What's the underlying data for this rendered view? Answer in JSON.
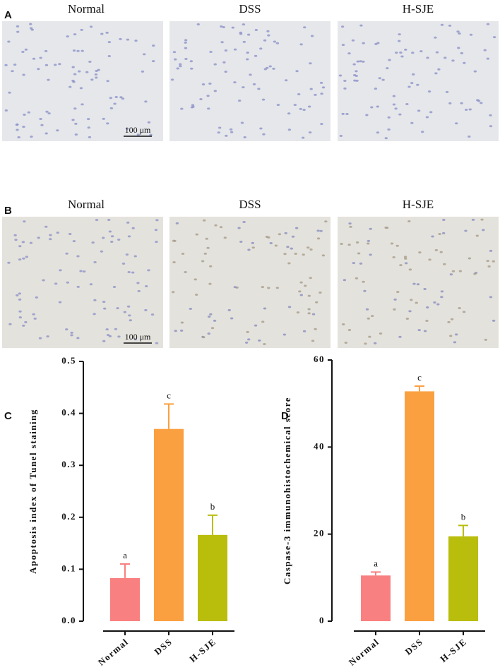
{
  "panels": [
    {
      "label": "A",
      "images": [
        "Normal",
        "DSS",
        "H-SJE"
      ],
      "scale_bar": "100 μm"
    },
    {
      "label": "B",
      "images": [
        "Normal",
        "DSS",
        "H-SJE"
      ],
      "scale_bar": "100 μm"
    }
  ],
  "chart_data": [
    {
      "type": "bar",
      "label": "C",
      "ylabel": "Apoptosis index of Tunel staining",
      "categories": [
        "Normal",
        "DSS",
        "H-SJE"
      ],
      "values": [
        0.083,
        0.37,
        0.166
      ],
      "errors": [
        0.027,
        0.048,
        0.038
      ],
      "annotations": [
        "a",
        "c",
        "b"
      ],
      "colors": [
        "#f98080",
        "#fba040",
        "#b9bd0c"
      ],
      "ylim": [
        0,
        0.5
      ],
      "yticks": [
        {
          "value": 0,
          "label": "0.0"
        },
        0.1,
        0.2,
        0.3,
        0.4,
        0.5
      ]
    },
    {
      "type": "bar",
      "label": "D",
      "ylabel": "Caspase-3 immunohistochemical score",
      "categories": [
        "Normal",
        "DSS",
        "H-SJE"
      ],
      "values": [
        10.5,
        52.8,
        19.5
      ],
      "errors": [
        0.8,
        1.2,
        2.5
      ],
      "annotations": [
        "a",
        "c",
        "b"
      ],
      "colors": [
        "#f98080",
        "#fba040",
        "#b9bd0c"
      ],
      "ylim": [
        0,
        60
      ],
      "yticks": [
        0,
        20,
        40,
        60
      ]
    }
  ]
}
